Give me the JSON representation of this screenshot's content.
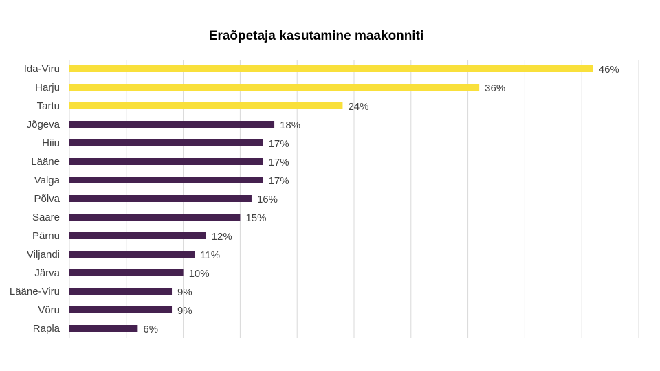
{
  "chart_data": {
    "type": "bar",
    "orientation": "horizontal",
    "title": "Eraõpetaja kasutamine maakonniti",
    "categories": [
      "Ida-Viru",
      "Harju",
      "Tartu",
      "Jõgeva",
      "Hiiu",
      "Lääne",
      "Valga",
      "Põlva",
      "Saare",
      "Pärnu",
      "Viljandi",
      "Järva",
      "Lääne-Viru",
      "Võru",
      "Rapla"
    ],
    "values": [
      46,
      36,
      24,
      18,
      17,
      17,
      17,
      16,
      15,
      12,
      11,
      10,
      9,
      9,
      6
    ],
    "data_labels": [
      "46%",
      "36%",
      "24%",
      "18%",
      "17%",
      "17%",
      "17%",
      "16%",
      "15%",
      "12%",
      "11%",
      "10%",
      "9%",
      "9%",
      "6%"
    ],
    "highlight_count": 3,
    "colors": {
      "highlight": "#F9E03B",
      "default": "#45214F",
      "grid": "#D9D9D9",
      "label": "#404040"
    },
    "xlim": [
      0,
      50
    ],
    "grid_step": 5,
    "grid": true,
    "legend": false
  }
}
